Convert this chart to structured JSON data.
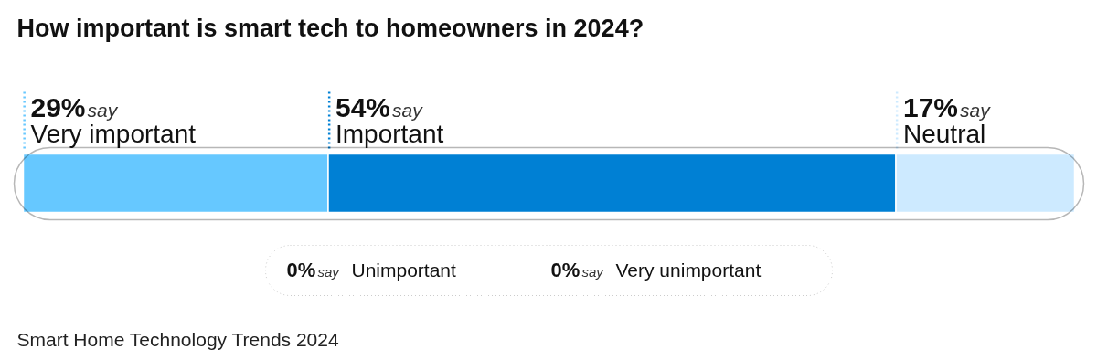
{
  "chart_data": {
    "type": "bar",
    "orientation": "horizontal",
    "stacked": true,
    "title": "How important is smart tech to homeowners in 2024?",
    "categories": [
      null
    ],
    "tick_labels": false,
    "grid": false,
    "legend": "top",
    "series": [
      {
        "name": "Very important",
        "color": "#66c8ff",
        "values": [
          29
        ],
        "value_labels": [
          "29%"
        ]
      },
      {
        "name": "Important",
        "color": "#0080d4",
        "values": [
          54
        ],
        "value_labels": [
          "54%"
        ]
      },
      {
        "name": "Neutral",
        "color": "#cdeaff",
        "values": [
          17
        ],
        "value_labels": [
          "17%"
        ]
      }
    ],
    "annotations": [
      "say",
      "say",
      "say",
      "0%",
      "say",
      "Unimportant",
      "0%",
      "say",
      "Very unimportant",
      "Smart Home Technology Trends 2024"
    ]
  }
}
